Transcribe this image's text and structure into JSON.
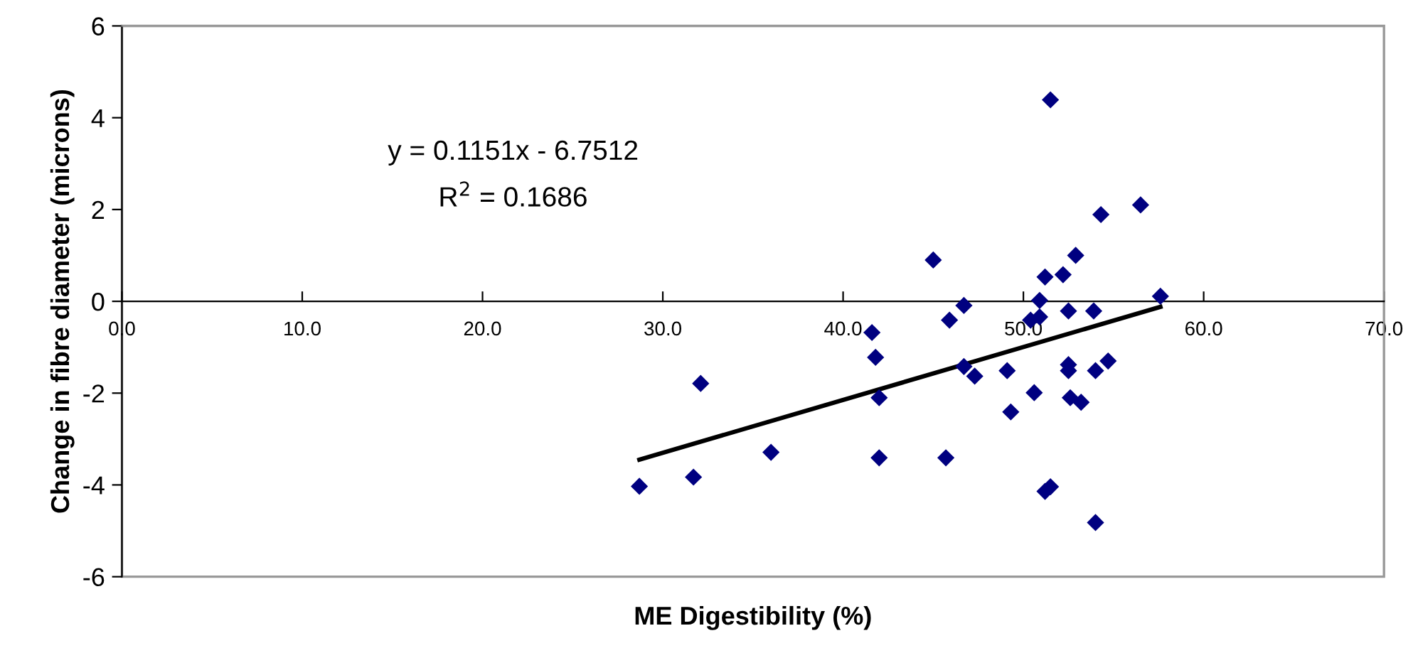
{
  "chart_data": {
    "type": "scatter",
    "xlabel": "ME Digestibility (%)",
    "ylabel": "Change in fibre diameter (microns)",
    "xlim": [
      0,
      70
    ],
    "xticks": [
      {
        "value": 0,
        "label": "0.0"
      },
      {
        "value": 10,
        "label": "10.0"
      },
      {
        "value": 20,
        "label": "20.0"
      },
      {
        "value": 30,
        "label": "30.0"
      },
      {
        "value": 40,
        "label": "40.0"
      },
      {
        "value": 50,
        "label": "50.0"
      },
      {
        "value": 60,
        "label": "60.0"
      },
      {
        "value": 70,
        "label": "70.0"
      }
    ],
    "ylim": [
      -6,
      6
    ],
    "yticks": [
      -6,
      -4,
      -2,
      0,
      2,
      4,
      6
    ],
    "grid": false,
    "legend": false,
    "marker": "diamond",
    "annotations": [
      "y = 0.1151x - 6.7512",
      "R$^{2}$ = 0.1686"
    ],
    "series": [
      {
        "color": "#000080",
        "x": [
          51.5,
          56.5,
          54.3,
          45.0,
          52.9,
          51.2,
          52.2,
          57.6,
          50.9,
          46.7,
          52.5,
          53.9,
          45.9,
          50.4,
          50.9,
          41.6,
          41.8,
          32.1,
          42.0,
          46.7,
          47.3,
          49.1,
          50.6,
          49.3,
          52.5,
          52.5,
          52.6,
          53.2,
          54.0,
          54.7,
          54.0,
          51.2,
          51.5,
          45.7,
          42.0,
          36.0,
          31.7,
          28.7
        ],
        "values": [
          4.39,
          2.1,
          1.89,
          0.9,
          1.0,
          0.53,
          0.58,
          0.11,
          0.02,
          -0.09,
          -0.21,
          -0.21,
          -0.41,
          -0.41,
          -0.34,
          -0.68,
          -1.22,
          -1.79,
          -2.1,
          -1.42,
          -1.63,
          -1.51,
          -1.99,
          -2.41,
          -1.38,
          -1.51,
          -2.1,
          -2.2,
          -1.51,
          -1.3,
          -4.82,
          -4.14,
          -4.04,
          -3.41,
          -3.41,
          -3.29,
          -3.83,
          -4.03
        ]
      },
      {
        "type": "line",
        "color": "#000000",
        "line_style": "solid",
        "marker": "none",
        "x": [
          28.7,
          57.6
        ],
        "values": [
          -3.45,
          -0.12
        ]
      }
    ]
  }
}
